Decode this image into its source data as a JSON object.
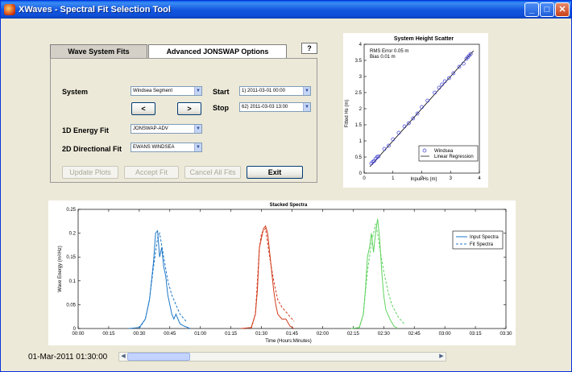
{
  "window": {
    "title": "XWaves  -  Spectral Fit Selection Tool",
    "controls": {
      "minimize": "_",
      "maximize": "□",
      "close": "✕"
    }
  },
  "tabs": [
    {
      "label": "Wave System Fits",
      "active": true
    },
    {
      "label": "Advanced JONSWAP Options",
      "active": false
    }
  ],
  "help_label": "?",
  "form": {
    "system_label": "System",
    "system_value": "Windsea Segment",
    "start_label": "Start",
    "start_value": "1) 2011-03-01 00:00",
    "stop_label": "Stop",
    "stop_value": "62) 2011-03-03 13:00",
    "prev_label": "<",
    "next_label": ">",
    "energy_fit_label": "1D Energy Fit",
    "energy_fit_value": "JONSWAP-ADV",
    "directional_fit_label": "2D Directional Fit",
    "directional_fit_value": "EWANS WINDSEA"
  },
  "actions": {
    "update_plots": "Update Plots",
    "accept_fit": "Accept Fit",
    "cancel_all_fits": "Cancel All Fits",
    "exit": "Exit"
  },
  "timestamp": "01-Mar-2011 01:30:00",
  "colors": {
    "scatter_marker": "#3b3bd6",
    "series_blue": "#1f78c8",
    "series_red": "#d23c1c",
    "series_green": "#5fd35f",
    "legend_input": "#1f78c8"
  },
  "chart_data": [
    {
      "type": "scatter",
      "title": "System Height Scatter",
      "xlabel": "Input Hs (m)",
      "ylabel": "Fitted Hs (m)",
      "xlim": [
        0,
        4
      ],
      "ylim": [
        0,
        4
      ],
      "xticks": [
        "0",
        "1",
        "2",
        "3",
        "4"
      ],
      "yticks": [
        "0",
        "0.5",
        "1",
        "1.5",
        "2",
        "2.5",
        "3",
        "3.5",
        "4"
      ],
      "annotations": [
        "RMS Error   0.05 m",
        "Bias          0.01 m"
      ],
      "legend": [
        "Windsea",
        "Linear Regression"
      ],
      "legend_position": "bottom-right",
      "series": [
        {
          "name": "Windsea",
          "x": [
            0.25,
            0.3,
            0.35,
            0.4,
            0.45,
            0.5,
            0.7,
            0.85,
            1.0,
            1.2,
            1.4,
            1.55,
            1.7,
            1.85,
            2.0,
            2.2,
            2.45,
            2.6,
            2.7,
            2.8,
            2.95,
            3.1,
            3.3,
            3.45,
            3.55,
            3.6,
            3.65,
            3.7
          ],
          "y": [
            0.3,
            0.35,
            0.38,
            0.45,
            0.5,
            0.52,
            0.75,
            0.85,
            1.05,
            1.25,
            1.45,
            1.55,
            1.7,
            1.85,
            2.05,
            2.25,
            2.5,
            2.65,
            2.75,
            2.85,
            2.95,
            3.1,
            3.3,
            3.4,
            3.55,
            3.6,
            3.65,
            3.7
          ]
        },
        {
          "name": "Linear Regression",
          "x": [
            0.2,
            3.8
          ],
          "y": [
            0.2,
            3.8
          ]
        }
      ]
    },
    {
      "type": "line",
      "title": "Stacked Spectra",
      "xlabel": "Time (Hours:Minutes)",
      "ylabel": "Wave Energy (m²/Hz)",
      "xlim": [
        0,
        210
      ],
      "ylim": [
        0,
        0.25
      ],
      "xticks": [
        "00:00",
        "00:15",
        "00:30",
        "00:45",
        "01:00",
        "01:15",
        "01:30",
        "01:45",
        "02:00",
        "02:15",
        "02:30",
        "02:45",
        "03:00",
        "03:15",
        "03:30"
      ],
      "yticks": [
        "0",
        "0.05",
        "0.1",
        "0.15",
        "0.2",
        "0.25"
      ],
      "legend": [
        "Input Spectra",
        "Fit Spectra"
      ],
      "legend_position": "top-right",
      "series": [
        {
          "name": "Input Spectra",
          "x": [
            25,
            30,
            33,
            35,
            37,
            38,
            39,
            40,
            41,
            42,
            43,
            44,
            45,
            46,
            47,
            48,
            50,
            52,
            55
          ],
          "y": [
            0,
            0.002,
            0.02,
            0.06,
            0.14,
            0.2,
            0.205,
            0.15,
            0.17,
            0.13,
            0.11,
            0.07,
            0.05,
            0.03,
            0.02,
            0.03,
            0.01,
            0.005,
            0
          ]
        },
        {
          "name": "Fit Spectra",
          "x": [
            30,
            33,
            35,
            37,
            39,
            40,
            42,
            44,
            46,
            48,
            50,
            53
          ],
          "y": [
            0,
            0.02,
            0.06,
            0.13,
            0.19,
            0.2,
            0.15,
            0.1,
            0.07,
            0.05,
            0.03,
            0.015
          ]
        },
        {
          "name": "Input Spectra",
          "x": [
            80,
            85,
            87,
            88,
            89,
            90,
            91,
            92,
            93,
            94,
            95,
            96,
            97,
            98,
            100,
            102,
            104,
            106
          ],
          "y": [
            0,
            0.002,
            0.03,
            0.08,
            0.17,
            0.19,
            0.21,
            0.215,
            0.2,
            0.16,
            0.12,
            0.08,
            0.05,
            0.03,
            0.02,
            0.02,
            0.005,
            0
          ]
        },
        {
          "name": "Fit Spectra",
          "x": [
            85,
            87,
            89,
            90,
            92,
            94,
            96,
            98,
            100,
            103,
            106
          ],
          "y": [
            0,
            0.03,
            0.17,
            0.2,
            0.21,
            0.15,
            0.1,
            0.06,
            0.045,
            0.03,
            0.015
          ]
        },
        {
          "name": "Input Spectra",
          "x": [
            134,
            138,
            140,
            141,
            142,
            143,
            144,
            145,
            146,
            147,
            148,
            149,
            150,
            151,
            153,
            155,
            157
          ],
          "y": [
            0,
            0.002,
            0.03,
            0.08,
            0.15,
            0.17,
            0.2,
            0.16,
            0.2,
            0.23,
            0.19,
            0.12,
            0.07,
            0.04,
            0.02,
            0.005,
            0
          ]
        },
        {
          "name": "Fit Spectra",
          "x": [
            138,
            140,
            142,
            144,
            146,
            147,
            148,
            150,
            152,
            154,
            157,
            160
          ],
          "y": [
            0,
            0.03,
            0.12,
            0.18,
            0.22,
            0.2,
            0.17,
            0.12,
            0.08,
            0.05,
            0.025,
            0.01
          ]
        }
      ]
    }
  ]
}
